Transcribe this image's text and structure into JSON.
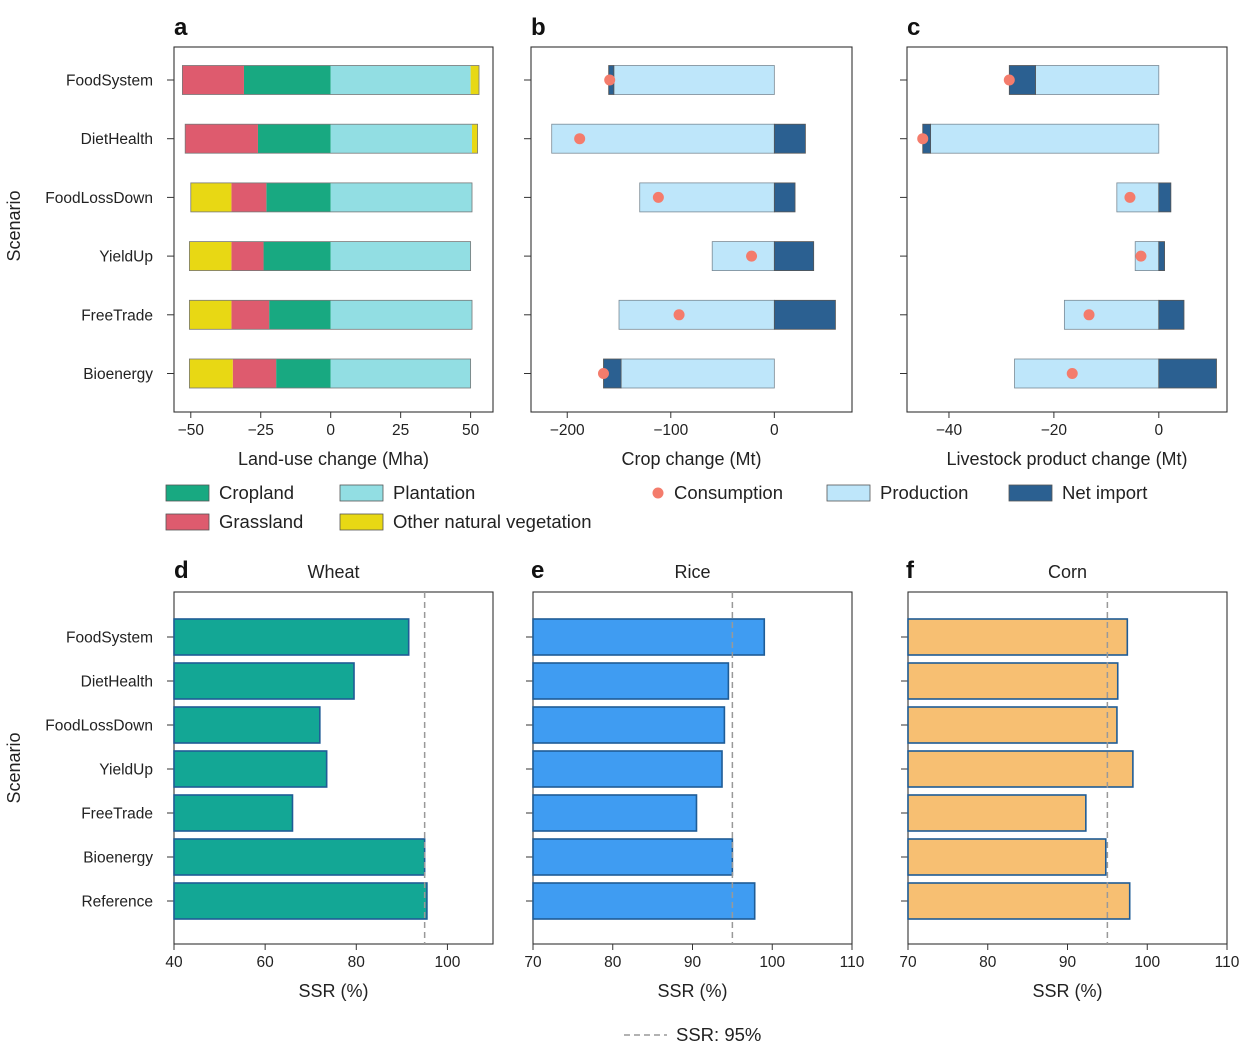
{
  "panel_letters": [
    "a",
    "b",
    "c",
    "d",
    "e",
    "f"
  ],
  "y_axis_label": "Scenario",
  "legend_top": {
    "land_items": [
      {
        "label": "Cropland",
        "color": "#18A981"
      },
      {
        "label": "Plantation",
        "color": "#92DEE3"
      },
      {
        "label": "Grassland",
        "color": "#DE5B6E"
      },
      {
        "label": "Other natural vegetation",
        "color": "#E8D814"
      }
    ],
    "crop_items": [
      {
        "label": "Consumption",
        "color": "#F47C6C"
      },
      {
        "label": "Production",
        "color": "#BEE6FA"
      },
      {
        "label": "Net import",
        "color": "#2B6091"
      }
    ]
  },
  "legend_bottom": {
    "label": "SSR: 95%"
  },
  "chart_data": [
    {
      "panel": "a",
      "type": "bar",
      "orientation": "horizontal",
      "stacked": "diverging",
      "title": "",
      "xlabel": "Land-use change (Mha)",
      "ylabel": "Scenario",
      "xlim": [
        -56,
        58
      ],
      "xticks": [
        -50,
        -25,
        0,
        25,
        50
      ],
      "tick_labels": [
        "−50",
        "−25",
        "0",
        "25",
        "50"
      ],
      "categories": [
        "FoodSystem",
        "DietHealth",
        "FoodLossDown",
        "YieldUp",
        "FreeTrade",
        "Bioenergy"
      ],
      "series": [
        {
          "name": "Cropland",
          "color": "#18A981",
          "values": [
            -31,
            -26,
            -23,
            -24,
            -22,
            -19.5
          ]
        },
        {
          "name": "Grassland",
          "color": "#DE5B6E",
          "values": [
            -22,
            -26,
            -12.5,
            -11.5,
            -13.5,
            -15.5
          ]
        },
        {
          "name": "Other natural vegetation",
          "color": "#E8D814",
          "values": [
            0,
            0,
            -14.5,
            -15,
            -15,
            -15.5
          ]
        },
        {
          "name": "Plantation",
          "color": "#92DEE3",
          "values": [
            50,
            50.5,
            50.5,
            50,
            50.5,
            50
          ]
        },
        {
          "name": "Other natural vegetation",
          "color": "#E8D814",
          "values": [
            3,
            2,
            0,
            0,
            0,
            0
          ]
        }
      ]
    },
    {
      "panel": "b",
      "type": "bar",
      "orientation": "horizontal",
      "title": "",
      "xlabel": "Crop change (Mt)",
      "xlim": [
        -235,
        75
      ],
      "xticks": [
        -200,
        -100,
        0
      ],
      "tick_labels": [
        "−200",
        "−100",
        "0"
      ],
      "categories": [
        "FoodSystem",
        "DietHealth",
        "FoodLossDown",
        "YieldUp",
        "FreeTrade",
        "Bioenergy"
      ],
      "series": [
        {
          "name": "Production",
          "color": "#BEE6FA",
          "values": [
            -155,
            -215,
            -130,
            -60,
            -150,
            -148
          ]
        },
        {
          "name": "Net import",
          "color": "#2B6091",
          "ranges": [
            [
              -160,
              -155
            ],
            [
              0,
              30
            ],
            [
              0,
              20
            ],
            [
              0,
              38
            ],
            [
              0,
              59
            ],
            [
              -165,
              -148
            ]
          ]
        },
        {
          "name": "Consumption",
          "color": "#F47C6C",
          "values": [
            -159,
            -188,
            -112,
            -22,
            -92,
            -165
          ]
        }
      ]
    },
    {
      "panel": "c",
      "type": "bar",
      "orientation": "horizontal",
      "title": "",
      "xlabel": "Livestock product change (Mt)",
      "xlim": [
        -48,
        13
      ],
      "xticks": [
        -40,
        -20,
        0
      ],
      "tick_labels": [
        "−40",
        "−20",
        "0"
      ],
      "categories": [
        "FoodSystem",
        "DietHealth",
        "FoodLossDown",
        "YieldUp",
        "FreeTrade",
        "Bioenergy"
      ],
      "series": [
        {
          "name": "Production",
          "color": "#BEE6FA",
          "values": [
            -23.5,
            -43.5,
            -8,
            -4.5,
            -18,
            -27.5
          ]
        },
        {
          "name": "Net import",
          "color": "#2B6091",
          "ranges": [
            [
              -28.5,
              -23.5
            ],
            [
              -45,
              -43.5
            ],
            [
              0,
              2.3
            ],
            [
              0,
              1.1
            ],
            [
              0,
              4.8
            ],
            [
              0,
              11
            ]
          ]
        },
        {
          "name": "Consumption",
          "color": "#F47C6C",
          "values": [
            -28.5,
            -45,
            -5.5,
            -3.4,
            -13.3,
            -16.5
          ]
        }
      ]
    },
    {
      "panel": "d",
      "type": "bar",
      "orientation": "horizontal",
      "title": "Wheat",
      "xlabel": "SSR (%)",
      "ylabel": "Scenario",
      "xlim": [
        40,
        110
      ],
      "xticks": [
        40,
        60,
        80,
        100
      ],
      "tick_labels": [
        "40",
        "60",
        "80",
        "100"
      ],
      "color": "#13A795",
      "categories": [
        "FoodSystem",
        "DietHealth",
        "FoodLossDown",
        "YieldUp",
        "FreeTrade",
        "Bioenergy",
        "Reference"
      ],
      "values": [
        91.5,
        79.5,
        72,
        73.5,
        66,
        95,
        95.5
      ],
      "reference_line": 95
    },
    {
      "panel": "e",
      "type": "bar",
      "orientation": "horizontal",
      "title": "Rice",
      "xlabel": "SSR (%)",
      "xlim": [
        70,
        110
      ],
      "xticks": [
        70,
        80,
        90,
        100,
        110
      ],
      "tick_labels": [
        "70",
        "80",
        "90",
        "100",
        "110"
      ],
      "color": "#3F9CF2",
      "categories": [
        "FoodSystem",
        "DietHealth",
        "FoodLossDown",
        "YieldUp",
        "FreeTrade",
        "Bioenergy",
        "Reference"
      ],
      "values": [
        99,
        94.5,
        94,
        93.7,
        90.5,
        95,
        97.8
      ],
      "reference_line": 95
    },
    {
      "panel": "f",
      "type": "bar",
      "orientation": "horizontal",
      "title": "Corn",
      "xlabel": "SSR (%)",
      "xlim": [
        70,
        110
      ],
      "xticks": [
        70,
        80,
        90,
        100,
        110
      ],
      "tick_labels": [
        "70",
        "80",
        "90",
        "100",
        "110"
      ],
      "color": "#F7BF72",
      "categories": [
        "FoodSystem",
        "DietHealth",
        "FoodLossDown",
        "YieldUp",
        "FreeTrade",
        "Bioenergy",
        "Reference"
      ],
      "values": [
        97.5,
        96.3,
        96.2,
        98.2,
        92.3,
        94.8,
        97.8
      ],
      "reference_line": 95
    }
  ]
}
